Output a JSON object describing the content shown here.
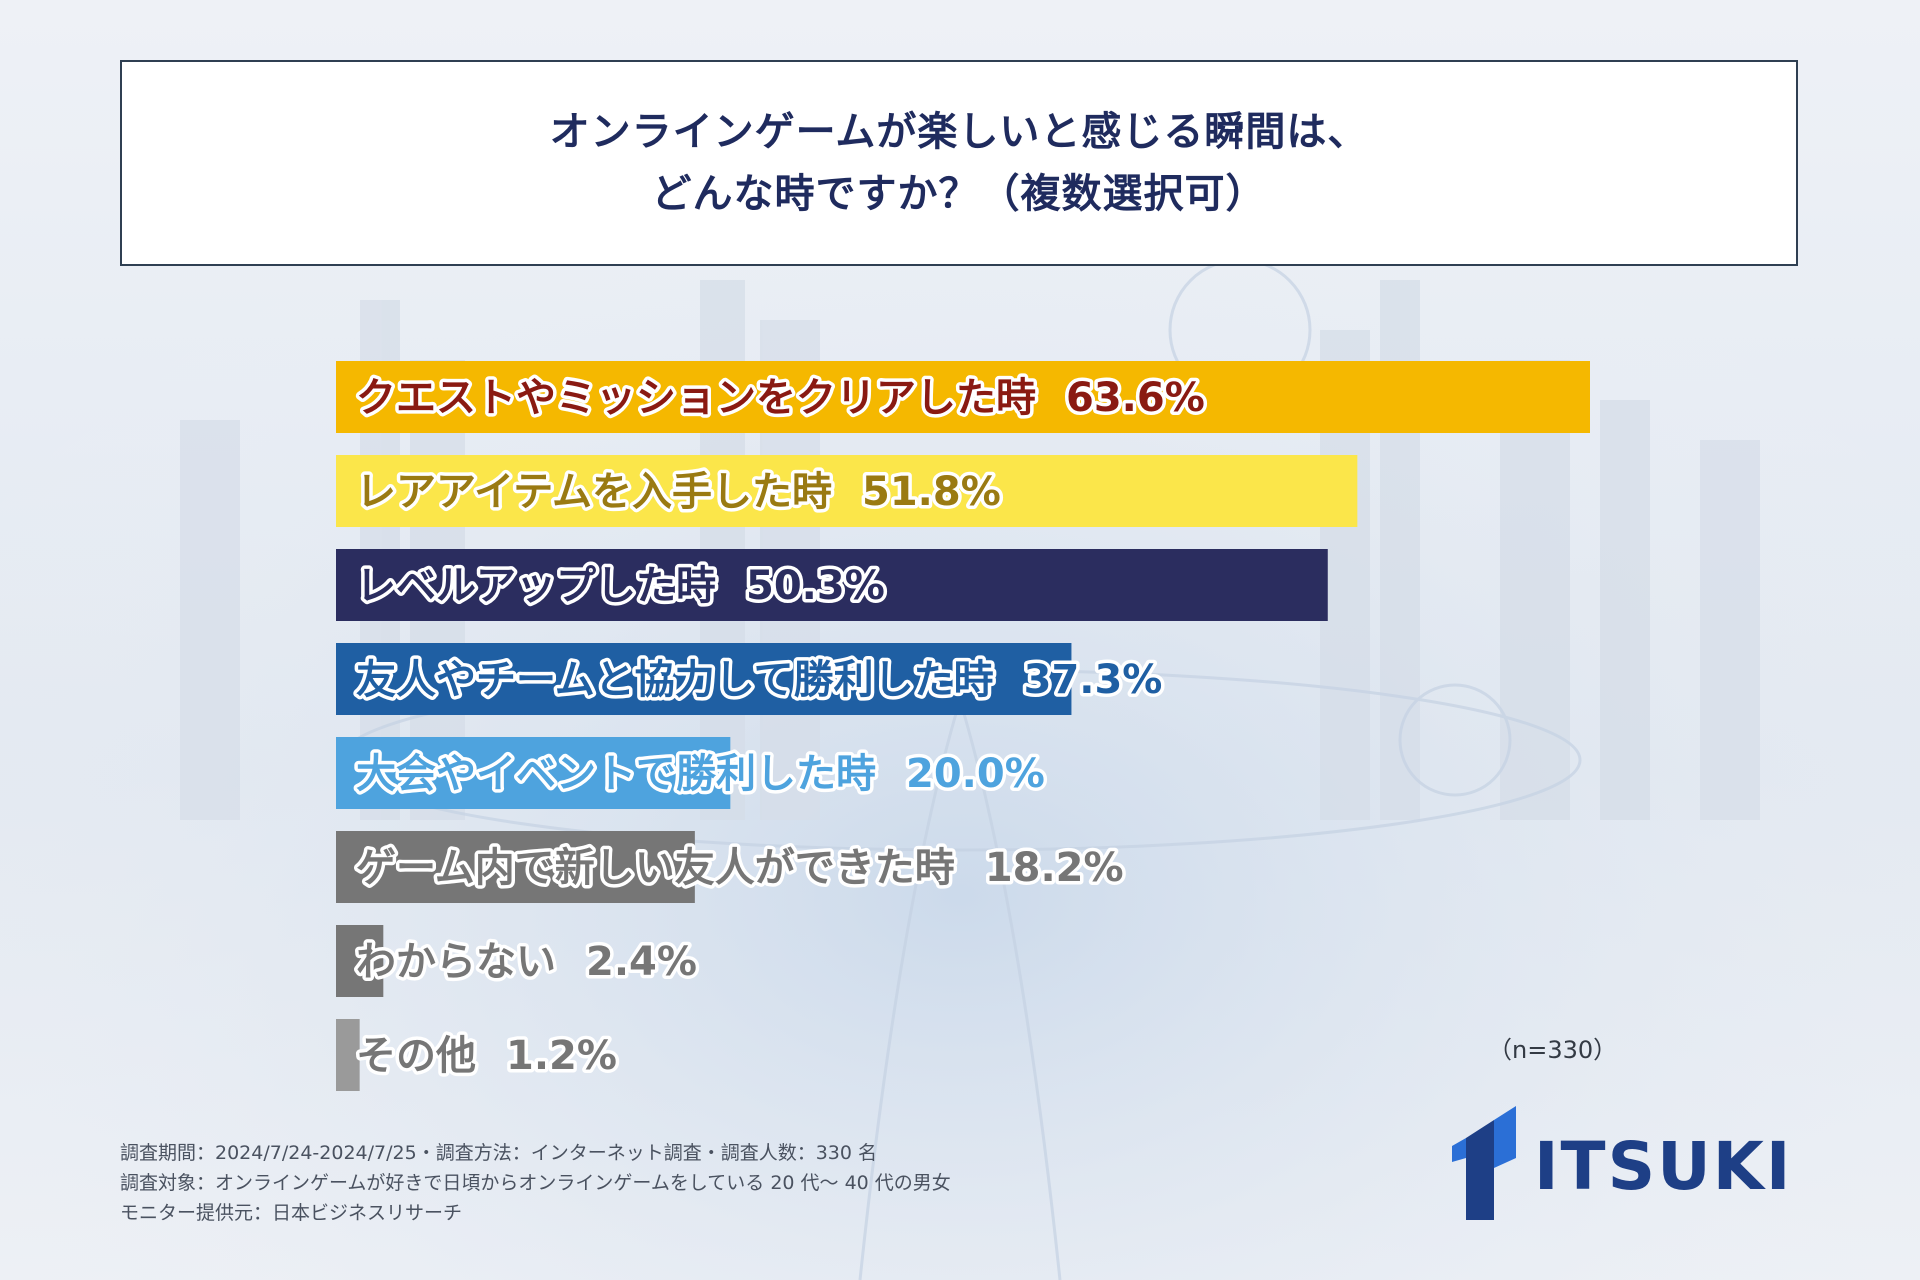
{
  "title": {
    "line1": "オンラインゲームが楽しいと感じる瞬間は、",
    "line2": "どんな時ですか？（複数選択可）"
  },
  "chart_data": {
    "type": "bar",
    "orientation": "horizontal",
    "unit": "%",
    "xlim": [
      0,
      63.6
    ],
    "categories": [
      "クエストやミッションをクリアした時",
      "レアアイテムを入手した時",
      "レベルアップした時",
      "友人やチームと協力して勝利した時",
      "大会やイベントで勝利した時",
      "ゲーム内で新しい友人ができた時",
      "わからない",
      "その他"
    ],
    "values": [
      63.6,
      51.8,
      50.3,
      37.3,
      20.0,
      18.2,
      2.4,
      1.2
    ],
    "value_labels": [
      "63.6%",
      "51.8%",
      "50.3%",
      "37.3%",
      "20.0%",
      "18.2%",
      "2.4%",
      "1.2%"
    ],
    "bar_colors": [
      "#f5b800",
      "#fbe64a",
      "#2b2d5f",
      "#1f5fa3",
      "#4ea3de",
      "#767676",
      "#767676",
      "#9a9a9a"
    ],
    "label_colors": [
      "#8a1a12",
      "#9a7a12",
      "#2b2d5f",
      "#1f5fa3",
      "#4ea3de",
      "#767676",
      "#767676",
      "#767676"
    ]
  },
  "sample_size": "（n=330）",
  "footer": {
    "line1": "調査期間：2024/7/24-2024/7/25・調査方法：インターネット調査・調査人数：330 名",
    "line2": "調査対象：オンラインゲームが好きで日頃からオンラインゲームをしている 20 代～ 40 代の男女",
    "line3": "モニター提供元：日本ビジネスリサーチ"
  },
  "logo": {
    "text": "ITSUKI",
    "colors": [
      "#1e3f86",
      "#2b6fd6"
    ]
  }
}
